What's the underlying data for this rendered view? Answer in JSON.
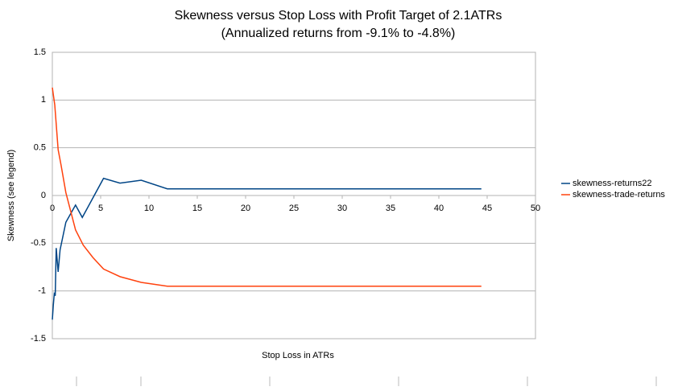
{
  "chart_data": {
    "type": "line",
    "title": "Skewness versus Stop Loss with Profit Target of 2.1ATRs",
    "subtitle": "(Annualized returns from -9.1% to -4.8%)",
    "x_label": "Stop Loss in ATRs",
    "y_label": "Skewness (see legend)",
    "xlim": [
      0,
      50
    ],
    "xticks": [
      0,
      5,
      10,
      15,
      20,
      25,
      30,
      35,
      40,
      45,
      50
    ],
    "ylim": [
      -1.5,
      1.5
    ],
    "yticks": [
      1.5,
      1,
      0.5,
      0,
      -0.5,
      -1,
      -1.5
    ],
    "grid": true,
    "legend": "right",
    "series": [
      {
        "name": "skewness-returns22",
        "color": "#004586",
        "x": [
          0,
          0.1,
          0.2,
          0.3,
          0.4,
          0.6,
          0.8,
          1.4,
          2.4,
          3.1,
          5.3,
          7,
          9.2,
          11.9,
          44.4
        ],
        "values": [
          -1.3,
          -1.15,
          -1.03,
          -1.05,
          -0.55,
          -0.8,
          -0.57,
          -0.28,
          -0.1,
          -0.23,
          0.18,
          0.13,
          0.16,
          0.07,
          0.07
        ]
      },
      {
        "name": "skewness-trade-returns",
        "color": "#ff420e",
        "x": [
          0,
          0.25,
          0.6,
          0.9,
          1.4,
          2.4,
          3.2,
          4.2,
          5.3,
          7,
          9.2,
          11.9,
          44.4
        ],
        "values": [
          1.13,
          0.95,
          0.48,
          0.32,
          0.03,
          -0.36,
          -0.52,
          -0.65,
          -0.77,
          -0.85,
          -0.91,
          -0.95,
          -0.95
        ]
      }
    ]
  }
}
